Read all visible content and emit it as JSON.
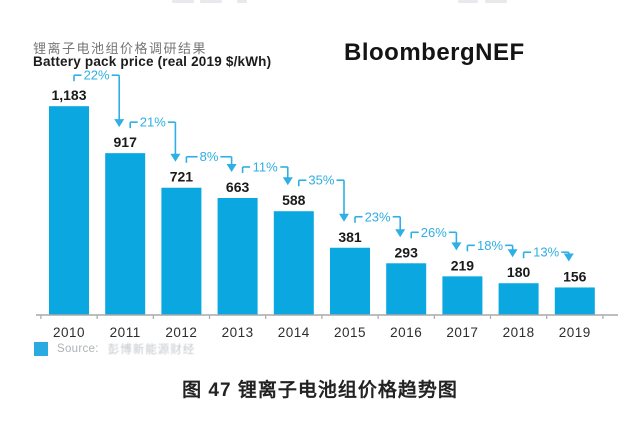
{
  "page": {
    "brand": "BloombergNEF",
    "caption": "图 47 锂离子电池组价格趋势图"
  },
  "chart_data": {
    "type": "bar",
    "title": "锂离子电池组价格调研结果",
    "subtitle": "Battery pack price (real 2019 $/kWh)",
    "categories": [
      "2010",
      "2011",
      "2012",
      "2013",
      "2014",
      "2015",
      "2016",
      "2017",
      "2018",
      "2019"
    ],
    "values": [
      1183,
      917,
      721,
      663,
      588,
      381,
      293,
      219,
      180,
      156
    ],
    "value_labels": [
      "1,183",
      "917",
      "721",
      "663",
      "588",
      "381",
      "293",
      "219",
      "180",
      "156"
    ],
    "decline_labels": [
      "22%",
      "21%",
      "8%",
      "11%",
      "35%",
      "23%",
      "26%",
      "18%",
      "13%"
    ],
    "xlabel": "",
    "ylabel": "",
    "ylim": [
      0,
      1200
    ],
    "grid": false,
    "legend_position": "bottom-left",
    "source_prefix": "Source:",
    "source_name": "彭博新能源财经",
    "colors": {
      "bar": "#0ba7e0",
      "annotation": "#2fafe3",
      "legend_swatch": "#29abe2",
      "axis": "#a9a9a9",
      "value_text": "#1a1a1a",
      "year_text": "#2d2d2d"
    }
  }
}
